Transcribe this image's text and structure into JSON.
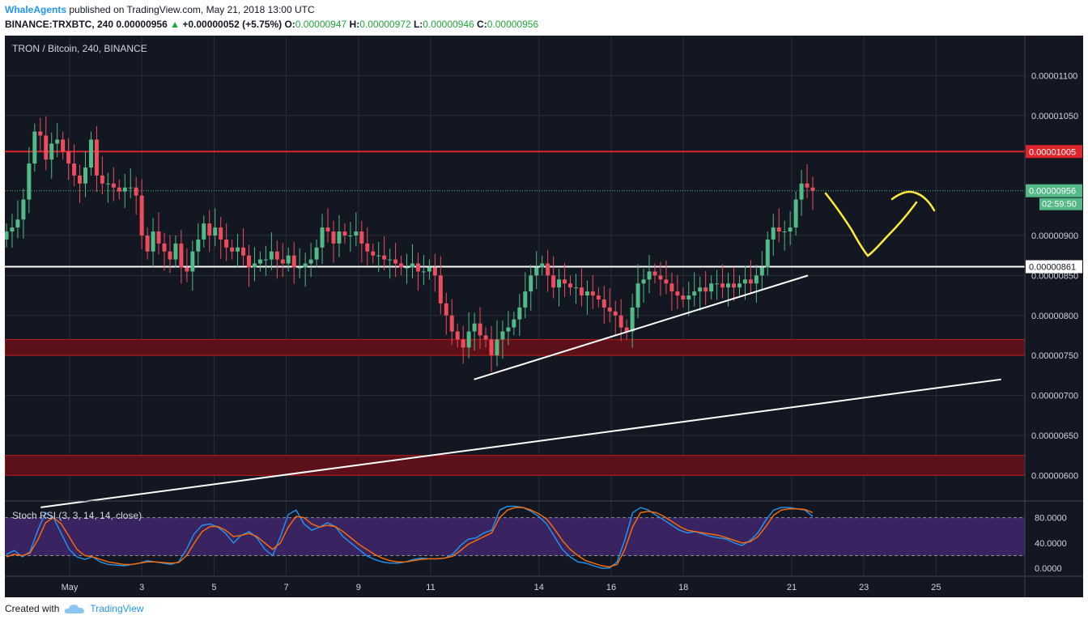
{
  "header": {
    "author": "WhaleAgents",
    "published": "published on TradingView.com, May 21, 2018 13:00 UTC",
    "symbol": "BINANCE:TRXBTC, 240",
    "last": "0.00000956",
    "up_arrow": "▲",
    "change": "+0.00000052 (+5.75%)",
    "o_label": "O:",
    "o": "0.00000947",
    "h_label": "H:",
    "h": "0.00000972",
    "l_label": "L:",
    "l": "0.00000946",
    "c_label": "C:",
    "c": "0.00000956"
  },
  "footer": {
    "created_with": "Created with",
    "brand": "TradingView",
    "logo_icon": "tradingview-cloud-icon"
  },
  "colors": {
    "up": "#53b987",
    "down": "#eb4d5c",
    "bg": "#131722",
    "resistance": "#e0242b",
    "zone": "#5c1019",
    "stoch_k": "#2196f3",
    "stoch_d": "#ff6d00",
    "rsi_band": "#3a2361",
    "annotation": "#ffeb3b"
  },
  "chart_data": [
    {
      "type": "candlestick",
      "title": "TRON / Bitcoin, 240, BINANCE",
      "x_ticks": [
        {
          "label": "May",
          "day": 1
        },
        {
          "label": "3",
          "day": 3
        },
        {
          "label": "5",
          "day": 5
        },
        {
          "label": "7",
          "day": 7
        },
        {
          "label": "9",
          "day": 9
        },
        {
          "label": "11",
          "day": 11
        },
        {
          "label": "14",
          "day": 14
        },
        {
          "label": "16",
          "day": 16
        },
        {
          "label": "18",
          "day": 18
        },
        {
          "label": "21",
          "day": 21
        },
        {
          "label": "23",
          "day": 23
        },
        {
          "label": "25",
          "day": 25
        }
      ],
      "y_ticks": [
        "0.00001100",
        "0.00001050",
        "0.00000900",
        "0.00000850",
        "0.00000800",
        "0.00000750",
        "0.00000700",
        "0.00000650",
        "0.00000600"
      ],
      "ylim": [
        5.7e-06,
        1.15e-05
      ],
      "grid": true,
      "labels": {
        "resistance": "0.00001005",
        "last_price": "0.00000956",
        "countdown": "02:59:50",
        "support": "0.00000861"
      },
      "levels": {
        "resistance": 1.005e-05,
        "last_price": 9.56e-06,
        "support": 8.61e-06
      },
      "zones": [
        [
          7.5e-06,
          7.7e-06
        ],
        [
          6e-06,
          6.25e-06
        ]
      ],
      "trendlines": [
        {
          "from": [
            7.2e-06,
            12.2
          ],
          "to": [
            8.5e-06,
            21.45
          ]
        },
        {
          "from": [
            5.6e-06,
            0.2
          ],
          "to": [
            7.2e-06,
            26.8
          ]
        }
      ],
      "closes": [
        9.05e-06,
        9.1e-06,
        9.2e-06,
        9.45e-06,
        9.9e-06,
        1.03e-05,
        1.025e-05,
        9.95e-06,
        1.015e-05,
        1.02e-05,
        1.005e-05,
        9.9e-06,
        9.75e-06,
        9.65e-06,
        9.85e-06,
        1.02e-05,
        9.75e-06,
        9.65e-06,
        9.65e-06,
        9.6e-06,
        9.55e-06,
        9.6e-06,
        9.6e-06,
        9.5e-06,
        9e-06,
        8.8e-06,
        9.05e-06,
        8.9e-06,
        8.8e-06,
        8.7e-06,
        8.9e-06,
        8.6e-06,
        8.55e-06,
        8.8e-06,
        8.95e-06,
        9.15e-06,
        9e-06,
        9.1e-06,
        8.95e-06,
        8.85e-06,
        8.8e-06,
        8.85e-06,
        8.75e-06,
        8.6e-06,
        8.65e-06,
        8.7e-06,
        8.7e-06,
        8.8e-06,
        8.7e-06,
        8.65e-06,
        8.75e-06,
        8.6e-06,
        8.6e-06,
        8.65e-06,
        8.7e-06,
        8.85e-06,
        9.1e-06,
        9.05e-06,
        8.9e-06,
        9.05e-06,
        9e-06,
        9e-06,
        9.05e-06,
        8.9e-06,
        8.8e-06,
        8.75e-06,
        8.75e-06,
        8.7e-06,
        8.7e-06,
        8.65e-06,
        8.6e-06,
        8.6e-06,
        8.65e-06,
        8.55e-06,
        8.55e-06,
        8.6e-06,
        8.5e-06,
        8.15e-06,
        8e-06,
        7.8e-06,
        7.7e-06,
        7.6e-06,
        7.8e-06,
        7.9e-06,
        7.75e-06,
        7.7e-06,
        7.5e-06,
        7.7e-06,
        7.8e-06,
        7.85e-06,
        7.95e-06,
        8.1e-06,
        8.3e-06,
        8.5e-06,
        8.6e-06,
        8.65e-06,
        8.5e-06,
        8.35e-06,
        8.45e-06,
        8.4e-06,
        8.35e-06,
        8.35e-06,
        8.25e-06,
        8.3e-06,
        8.25e-06,
        8.2e-06,
        8.1e-06,
        8.05e-06,
        8e-06,
        7.85e-06,
        7.8e-06,
        8.1e-06,
        8.4e-06,
        8.45e-06,
        8.55e-06,
        8.5e-06,
        8.45e-06,
        8.4e-06,
        8.3e-06,
        8.25e-06,
        8.2e-06,
        8.25e-06,
        8.3e-06,
        8.35e-06,
        8.3e-06,
        8.4e-06,
        8.4e-06,
        8.35e-06,
        8.4e-06,
        8.35e-06,
        8.4e-06,
        8.45e-06,
        8.4e-06,
        8.5e-06,
        8.6e-06,
        8.95e-06,
        9.1e-06,
        9.05e-06,
        9.05e-06,
        9.1e-06,
        9.45e-06,
        9.65e-06,
        9.6e-06,
        9.56e-06
      ],
      "stoch_rsi": {
        "title": "Stoch RSI (3, 3, 14, 14, close)",
        "y_ticks": [
          "80.0000",
          "40.0000",
          "0.0000"
        ],
        "ylim": [
          -5,
          100
        ],
        "band": [
          20,
          80
        ],
        "k": [
          22,
          28,
          18,
          26,
          60,
          88,
          80,
          55,
          30,
          18,
          14,
          18,
          10,
          6,
          5,
          4,
          6,
          8,
          12,
          10,
          8,
          6,
          10,
          30,
          55,
          68,
          70,
          65,
          55,
          40,
          52,
          58,
          48,
          30,
          20,
          50,
          85,
          92,
          70,
          60,
          65,
          72,
          66,
          50,
          40,
          30,
          20,
          14,
          10,
          8,
          8,
          10,
          14,
          16,
          15,
          15,
          16,
          22,
          36,
          46,
          48,
          56,
          60,
          92,
          98,
          98,
          96,
          90,
          82,
          70,
          50,
          30,
          18,
          10,
          8,
          4,
          0,
          0,
          10,
          45,
          88,
          96,
          92,
          84,
          76,
          68,
          60,
          56,
          58,
          54,
          50,
          48,
          46,
          40,
          36,
          44,
          56,
          76,
          92,
          96,
          96,
          94,
          92,
          82
        ],
        "d": [
          18,
          22,
          20,
          24,
          45,
          72,
          80,
          70,
          50,
          30,
          20,
          18,
          14,
          10,
          8,
          6,
          6,
          8,
          10,
          10,
          9,
          8,
          9,
          20,
          40,
          58,
          66,
          66,
          60,
          50,
          52,
          55,
          50,
          40,
          30,
          40,
          65,
          82,
          80,
          70,
          65,
          68,
          66,
          58,
          48,
          38,
          30,
          22,
          16,
          12,
          10,
          10,
          12,
          14,
          15,
          15,
          16,
          19,
          28,
          38,
          44,
          50,
          56,
          80,
          92,
          96,
          96,
          92,
          86,
          78,
          62,
          44,
          30,
          20,
          12,
          8,
          4,
          2,
          6,
          30,
          66,
          88,
          90,
          88,
          82,
          74,
          66,
          60,
          58,
          56,
          54,
          52,
          48,
          44,
          40,
          42,
          50,
          66,
          84,
          92,
          94,
          94,
          93,
          88
        ]
      }
    }
  ]
}
